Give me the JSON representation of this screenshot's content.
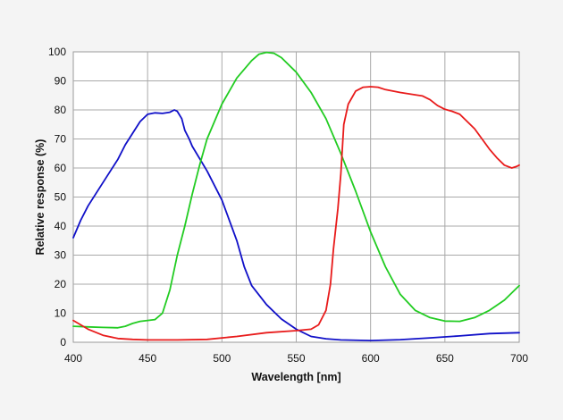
{
  "chart_data": {
    "type": "line",
    "title": "",
    "xlabel": "Wavelength [nm]",
    "ylabel": "Relative response (%)",
    "xlim": [
      400,
      700
    ],
    "ylim": [
      0,
      100
    ],
    "x_ticks": [
      400,
      450,
      500,
      550,
      600,
      650,
      700
    ],
    "y_ticks": [
      0,
      10,
      20,
      30,
      40,
      50,
      60,
      70,
      80,
      90,
      100
    ],
    "grid": true,
    "legend": "none",
    "series": [
      {
        "color": "#1010c8",
        "x": [
          400,
          405,
          410,
          420,
          430,
          435,
          440,
          445,
          450,
          455,
          460,
          465,
          468,
          470,
          473,
          475,
          478,
          480,
          490,
          500,
          510,
          515,
          520,
          530,
          540,
          550,
          560,
          570,
          580,
          600,
          620,
          640,
          660,
          680,
          700
        ],
        "y": [
          36,
          42,
          47,
          55,
          63,
          68,
          72,
          76,
          78.5,
          79,
          78.8,
          79.2,
          80,
          79.5,
          77,
          73,
          70,
          67.5,
          59,
          49,
          35,
          26,
          19.5,
          13,
          8,
          4.5,
          2,
          1.2,
          0.8,
          0.6,
          0.9,
          1.5,
          2.2,
          3,
          3.3
        ]
      },
      {
        "color": "#22cc22",
        "x": [
          400,
          410,
          420,
          430,
          435,
          440,
          445,
          450,
          455,
          460,
          465,
          470,
          475,
          480,
          485,
          490,
          500,
          510,
          520,
          525,
          530,
          535,
          540,
          550,
          560,
          570,
          580,
          590,
          600,
          610,
          620,
          630,
          640,
          650,
          660,
          670,
          680,
          690,
          700
        ],
        "y": [
          5.5,
          5.3,
          5.1,
          5,
          5.5,
          6.5,
          7.2,
          7.5,
          7.8,
          10,
          18,
          30,
          40,
          51,
          61,
          70,
          82,
          91,
          97,
          99.2,
          99.8,
          99.5,
          98,
          93,
          86,
          77,
          65,
          52,
          38,
          26,
          16.5,
          11,
          8.5,
          7.3,
          7.2,
          8.5,
          11,
          14.5,
          19.5
        ]
      },
      {
        "color": "#e81b1b",
        "x": [
          400,
          410,
          420,
          430,
          440,
          450,
          470,
          490,
          510,
          530,
          550,
          560,
          565,
          570,
          573,
          575,
          578,
          580,
          582,
          585,
          590,
          595,
          600,
          605,
          610,
          620,
          630,
          635,
          640,
          645,
          650,
          655,
          660,
          670,
          675,
          680,
          685,
          690,
          695,
          698,
          700
        ],
        "y": [
          7.5,
          4.5,
          2.4,
          1.3,
          1,
          0.8,
          0.8,
          1,
          2,
          3.3,
          4,
          4.5,
          6,
          11,
          20,
          32,
          46,
          58,
          75,
          82,
          86.5,
          87.8,
          88,
          87.8,
          87,
          86,
          85.2,
          84.8,
          83.5,
          81.5,
          80.2,
          79.5,
          78.5,
          73.5,
          70,
          66.5,
          63.5,
          61,
          60,
          60.5,
          61
        ]
      }
    ]
  }
}
